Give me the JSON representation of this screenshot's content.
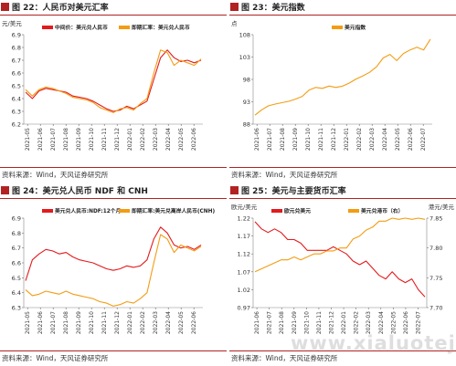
{
  "watermark": "www.xialuotejs.com",
  "panels": [
    {
      "title": "图 22：人民币对美元汇率",
      "source": "资料来源：Wind，天风证券研究所"
    },
    {
      "title": "图 23：美元指数",
      "source": "资料来源：Wind，天风证券研究所"
    },
    {
      "title": "图 24：美元兑人民币 NDF 和 CNH",
      "source": "资料来源：Wind，天风证券研究所"
    },
    {
      "title": "图 25：美元与主要货币汇率",
      "source": "资料来源：Wind，天风证券研究所"
    }
  ],
  "chart_data": [
    {
      "type": "line",
      "unit_label": "元/美元",
      "ylim": [
        6.2,
        6.9
      ],
      "yticks": [
        "6.2",
        "6.3",
        "6.4",
        "6.5",
        "6.6",
        "6.7",
        "6.8",
        "6.9"
      ],
      "legend_position": "top",
      "x_ticks": [
        "2021-05",
        "2021-06",
        "2021-07",
        "2021-08",
        "2021-09",
        "2021-10",
        "2021-11",
        "2021-12",
        "2022-01",
        "2022-02",
        "2022-03",
        "2022-04",
        "2022-05",
        "2022-06"
      ],
      "series": [
        {
          "name": "中间价：美元兑人民币",
          "color": "#e41a1c",
          "values": [
            6.45,
            6.4,
            6.46,
            6.48,
            6.47,
            6.46,
            6.45,
            6.42,
            6.41,
            6.4,
            6.38,
            6.35,
            6.32,
            6.3,
            6.31,
            6.34,
            6.32,
            6.35,
            6.38,
            6.55,
            6.72,
            6.78,
            6.72,
            6.69,
            6.7,
            6.68,
            6.7
          ]
        },
        {
          "name": "即期汇率：美元兑人民币",
          "color": "#f39c12",
          "values": [
            6.47,
            6.42,
            6.47,
            6.49,
            6.48,
            6.46,
            6.44,
            6.41,
            6.4,
            6.39,
            6.37,
            6.33,
            6.31,
            6.29,
            6.32,
            6.33,
            6.31,
            6.36,
            6.4,
            6.6,
            6.78,
            6.76,
            6.66,
            6.7,
            6.68,
            6.66,
            6.71
          ]
        }
      ]
    },
    {
      "type": "line",
      "unit_label": "点",
      "ylim": [
        88,
        108
      ],
      "yticks": [
        "88",
        "93",
        "98",
        "103",
        "108"
      ],
      "legend_position": "top",
      "x_ticks": [
        "2021-06",
        "2021-07",
        "2021-08",
        "2021-09",
        "2021-10",
        "2021-11",
        "2021-12",
        "2022-01",
        "2022-02",
        "2022-03",
        "2022-04",
        "2022-05",
        "2022-06",
        "2022-07"
      ],
      "series": [
        {
          "name": "美元指数",
          "color": "#f39c12",
          "values": [
            90.0,
            91.2,
            92.1,
            92.5,
            92.8,
            93.1,
            93.6,
            94.2,
            95.6,
            96.2,
            96.0,
            96.5,
            96.2,
            96.5,
            97.2,
            98.1,
            98.8,
            99.6,
            100.8,
            102.8,
            103.6,
            102.2,
            103.8,
            104.6,
            105.2,
            104.6,
            107.0
          ]
        }
      ]
    },
    {
      "type": "line",
      "unit_label": "",
      "ylim": [
        6.3,
        6.9
      ],
      "yticks": [
        "6.3",
        "6.4",
        "6.5",
        "6.6",
        "6.7",
        "6.8",
        "6.9"
      ],
      "legend_position": "top",
      "x_ticks": [
        "2021-05",
        "2021-06",
        "2021-07",
        "2021-08",
        "2021-09",
        "2021-10",
        "2021-11",
        "2021-12",
        "2022-01",
        "2022-02",
        "2022-03",
        "2022-04",
        "2022-05",
        "2022-06"
      ],
      "series": [
        {
          "name": "美元兑人民币:NDF:12个月",
          "color": "#e41a1c",
          "values": [
            6.48,
            6.62,
            6.66,
            6.69,
            6.68,
            6.66,
            6.67,
            6.64,
            6.62,
            6.61,
            6.6,
            6.58,
            6.56,
            6.55,
            6.56,
            6.58,
            6.57,
            6.58,
            6.62,
            6.76,
            6.84,
            6.8,
            6.72,
            6.7,
            6.71,
            6.69,
            6.72
          ]
        },
        {
          "name": "即期汇率:美元兑离岸人民币(CNH)",
          "color": "#f39c12",
          "values": [
            6.42,
            6.38,
            6.39,
            6.41,
            6.4,
            6.39,
            6.41,
            6.39,
            6.38,
            6.37,
            6.36,
            6.34,
            6.33,
            6.31,
            6.32,
            6.34,
            6.33,
            6.36,
            6.4,
            6.6,
            6.79,
            6.76,
            6.67,
            6.72,
            6.7,
            6.68,
            6.71
          ]
        }
      ]
    },
    {
      "type": "line",
      "unit_label_left": "欧元/美元",
      "unit_label_right": "港元/美元",
      "ylim_left": [
        0.97,
        1.22
      ],
      "yticks_left": [
        "0.97",
        "1.02",
        "1.07",
        "1.12",
        "1.17",
        "1.22"
      ],
      "ylim_right": [
        7.7,
        7.85
      ],
      "yticks_right": [
        "7.70",
        "7.75",
        "7.80",
        "7.85"
      ],
      "legend_position": "top",
      "x_ticks": [
        "2021-06",
        "2021-07",
        "2021-08",
        "2021-09",
        "2021-10",
        "2021-11",
        "2021-12",
        "2022-01",
        "2022-02",
        "2022-03",
        "2022-04",
        "2022-05",
        "2022-06",
        "2022-07"
      ],
      "series": [
        {
          "name": "欧元兑美元",
          "color": "#e41a1c",
          "axis": "left",
          "values": [
            1.21,
            1.19,
            1.18,
            1.19,
            1.18,
            1.16,
            1.16,
            1.15,
            1.13,
            1.13,
            1.13,
            1.13,
            1.14,
            1.13,
            1.12,
            1.1,
            1.09,
            1.1,
            1.08,
            1.06,
            1.05,
            1.07,
            1.05,
            1.04,
            1.05,
            1.02,
            1.0
          ]
        },
        {
          "name": "美元兑港币（右）",
          "color": "#f39c12",
          "axis": "right",
          "values": [
            7.76,
            7.765,
            7.77,
            7.775,
            7.78,
            7.78,
            7.785,
            7.78,
            7.785,
            7.79,
            7.79,
            7.795,
            7.795,
            7.8,
            7.8,
            7.815,
            7.82,
            7.83,
            7.835,
            7.845,
            7.845,
            7.85,
            7.848,
            7.85,
            7.848,
            7.85,
            7.848
          ]
        }
      ]
    }
  ]
}
